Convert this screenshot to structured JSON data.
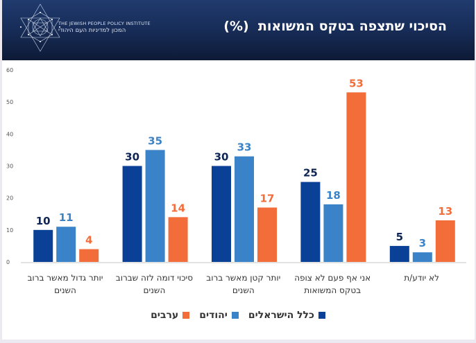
{
  "header": {
    "title": "הסיכוי שתצפה בטקס המשואות  (%)",
    "logo_text_en": "THE JEWISH PEOPLE POLICY INSTITUTE",
    "logo_text_he": "המכון למדיניות העם היהודי",
    "logo_icon": "star-of-david-geometric-icon"
  },
  "colors": {
    "header_top": "#203b6e",
    "header_bottom": "#0d1a36",
    "all_israelis": "#0a4096",
    "jews": "#3a83c8",
    "arabs": "#f26d3a",
    "all_israelis_label": "#0f2556"
  },
  "chart_data": {
    "type": "bar",
    "title": "הסיכוי שתצפה בטקס המשואות  (%)",
    "xlabel": "",
    "ylabel": "",
    "ylim": [
      0,
      60
    ],
    "yticks": [
      0,
      10,
      20,
      30,
      40,
      50,
      60
    ],
    "grid": false,
    "legend_position": "bottom",
    "categories": [
      "יותר גדול מאשר ברוב השנים",
      "סיכוי דומה לזה שברוב השנים",
      "יותר קטן מאשר ברוב השנים",
      "אני אף פעם לא צופה בטקס המשואות",
      "לא יודע/ת"
    ],
    "series": [
      {
        "name": "כלל הישראלים",
        "color": "#0a4096",
        "label_color": "#0f2556",
        "values": [
          10,
          30,
          30,
          25,
          5
        ]
      },
      {
        "name": "יהודים",
        "color": "#3a83c8",
        "label_color": "#3a83c8",
        "values": [
          11,
          35,
          33,
          18,
          3
        ]
      },
      {
        "name": "ערבים",
        "color": "#f26d3a",
        "label_color": "#f26d3a",
        "values": [
          4,
          14,
          17,
          53,
          13
        ]
      }
    ]
  }
}
